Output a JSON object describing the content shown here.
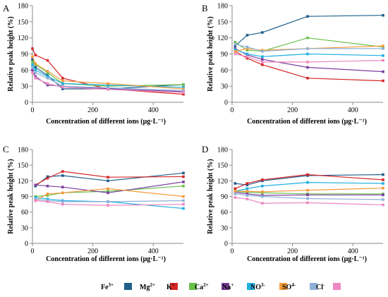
{
  "legend": [
    {
      "text": "Fe",
      "sup": "3+",
      "color": "#1f5f8b"
    },
    {
      "text": "Mg",
      "sup": "2+",
      "color": "#d62728"
    },
    {
      "text": "K",
      "sup": "+",
      "color": "#6abf4b"
    },
    {
      "text": "Ca",
      "sup": "2+",
      "color": "#7b3fa0"
    },
    {
      "text": "Na",
      "sup": "+",
      "color": "#1fb0e0"
    },
    {
      "text": "NO",
      "sup": "3-",
      "color": "#f39c3d"
    },
    {
      "text": "SO",
      "sup": "4-",
      "color": "#8fb0d8"
    },
    {
      "text": "Cl",
      "sup": "-",
      "color": "#ee88c0"
    }
  ],
  "chart_data": [
    {
      "panel": "A",
      "type": "line",
      "xlabel": "Concentration of different ions (μg·L⁻¹)",
      "ylabel": "Relative peak height (%)",
      "xlim": [
        0,
        500
      ],
      "ylim": [
        0,
        180
      ],
      "xticks": [
        0,
        200,
        400
      ],
      "yticks": [
        0,
        30,
        60,
        90,
        120,
        150,
        180
      ],
      "x": [
        0,
        10,
        50,
        100,
        250,
        500
      ],
      "series": [
        {
          "name": "Fe3+",
          "color": "#1f5f8b",
          "values": [
            80,
            65,
            50,
            25,
            25,
            33
          ]
        },
        {
          "name": "Mg2+",
          "color": "#d62728",
          "values": [
            100,
            88,
            78,
            45,
            25,
            15
          ]
        },
        {
          "name": "K+",
          "color": "#6abf4b",
          "values": [
            75,
            70,
            55,
            35,
            30,
            33
          ]
        },
        {
          "name": "Ca2+",
          "color": "#7b3fa0",
          "values": [
            60,
            48,
            32,
            30,
            25,
            20
          ]
        },
        {
          "name": "Na+",
          "color": "#1fb0e0",
          "values": [
            70,
            60,
            48,
            35,
            32,
            28
          ]
        },
        {
          "name": "NO3-",
          "color": "#f39c3d",
          "values": [
            85,
            72,
            58,
            40,
            35,
            25
          ]
        },
        {
          "name": "SO4-",
          "color": "#8fb0d8",
          "values": [
            65,
            55,
            45,
            30,
            27,
            22
          ]
        },
        {
          "name": "Cl-",
          "color": "#ee88c0",
          "values": [
            55,
            45,
            35,
            28,
            24,
            18
          ]
        }
      ]
    },
    {
      "panel": "B",
      "type": "line",
      "xlabel": "Concentration of different ions (μg·L⁻¹)",
      "ylabel": "Relative peak height (%)",
      "xlim": [
        0,
        500
      ],
      "ylim": [
        0,
        180
      ],
      "xticks": [
        0,
        200,
        400
      ],
      "yticks": [
        0,
        30,
        60,
        90,
        120,
        150,
        180
      ],
      "x": [
        10,
        50,
        100,
        250,
        500
      ],
      "series": [
        {
          "name": "Fe3+",
          "color": "#1f5f8b",
          "values": [
            105,
            125,
            130,
            160,
            162
          ]
        },
        {
          "name": "Mg2+",
          "color": "#d62728",
          "values": [
            95,
            82,
            70,
            45,
            40
          ]
        },
        {
          "name": "K+",
          "color": "#6abf4b",
          "values": [
            112,
            97,
            95,
            120,
            103
          ]
        },
        {
          "name": "Ca2+",
          "color": "#7b3fa0",
          "values": [
            100,
            88,
            80,
            65,
            57
          ]
        },
        {
          "name": "Na+",
          "color": "#1fb0e0",
          "values": [
            98,
            90,
            85,
            90,
            87
          ]
        },
        {
          "name": "NO3-",
          "color": "#f39c3d",
          "values": [
            95,
            100,
            97,
            100,
            105
          ]
        },
        {
          "name": "SO4-",
          "color": "#8fb0d8",
          "values": [
            108,
            103,
            95,
            100,
            100
          ]
        },
        {
          "name": "Cl-",
          "color": "#ee88c0",
          "values": [
            90,
            85,
            75,
            75,
            78
          ]
        }
      ]
    },
    {
      "panel": "C",
      "type": "line",
      "xlabel": "Concentration of different ions (μg·L⁻¹)",
      "ylabel": "Relative peak height (%)",
      "xlim": [
        0,
        500
      ],
      "ylim": [
        0,
        180
      ],
      "xticks": [
        0,
        200,
        400
      ],
      "yticks": [
        0,
        30,
        60,
        90,
        120,
        150,
        180
      ],
      "x": [
        10,
        50,
        100,
        250,
        500
      ],
      "series": [
        {
          "name": "Fe3+",
          "color": "#1f5f8b",
          "values": [
            110,
            128,
            130,
            120,
            135
          ]
        },
        {
          "name": "Mg2+",
          "color": "#d62728",
          "values": [
            112,
            125,
            138,
            127,
            128
          ]
        },
        {
          "name": "K+",
          "color": "#6abf4b",
          "values": [
            90,
            92,
            97,
            100,
            110
          ]
        },
        {
          "name": "Ca2+",
          "color": "#7b3fa0",
          "values": [
            112,
            110,
            108,
            97,
            118
          ]
        },
        {
          "name": "Na+",
          "color": "#1fb0e0",
          "values": [
            88,
            85,
            82,
            80,
            67
          ]
        },
        {
          "name": "NO3-",
          "color": "#f39c3d",
          "values": [
            82,
            95,
            97,
            105,
            90
          ]
        },
        {
          "name": "SO4-",
          "color": "#8fb0d8",
          "values": [
            85,
            82,
            80,
            80,
            82
          ]
        },
        {
          "name": "Cl-",
          "color": "#ee88c0",
          "values": [
            82,
            80,
            75,
            73,
            75
          ]
        }
      ]
    },
    {
      "panel": "D",
      "type": "line",
      "xlabel": "Concentration of different ions (μg·L⁻¹)",
      "ylabel": "Relative peak height (%)",
      "xlim": [
        0,
        500
      ],
      "ylim": [
        0,
        180
      ],
      "xticks": [
        0,
        200,
        400
      ],
      "yticks": [
        0,
        30,
        60,
        90,
        120,
        150,
        180
      ],
      "x": [
        10,
        50,
        100,
        250,
        500
      ],
      "series": [
        {
          "name": "Fe3+",
          "color": "#1f5f8b",
          "values": [
            115,
            112,
            120,
            130,
            132
          ]
        },
        {
          "name": "Mg2+",
          "color": "#d62728",
          "values": [
            105,
            115,
            122,
            132,
            122
          ]
        },
        {
          "name": "K+",
          "color": "#6abf4b",
          "values": [
            100,
            98,
            97,
            95,
            95
          ]
        },
        {
          "name": "Ca2+",
          "color": "#7b3fa0",
          "values": [
            98,
            95,
            92,
            93,
            93
          ]
        },
        {
          "name": "Na+",
          "color": "#1fb0e0",
          "values": [
            100,
            105,
            110,
            117,
            115
          ]
        },
        {
          "name": "NO3-",
          "color": "#f39c3d",
          "values": [
            100,
            100,
            99,
            102,
            106
          ]
        },
        {
          "name": "SO4-",
          "color": "#8fb0d8",
          "values": [
            95,
            92,
            90,
            86,
            84
          ]
        },
        {
          "name": "Cl-",
          "color": "#ee88c0",
          "values": [
            88,
            85,
            77,
            78,
            74
          ]
        }
      ]
    }
  ]
}
